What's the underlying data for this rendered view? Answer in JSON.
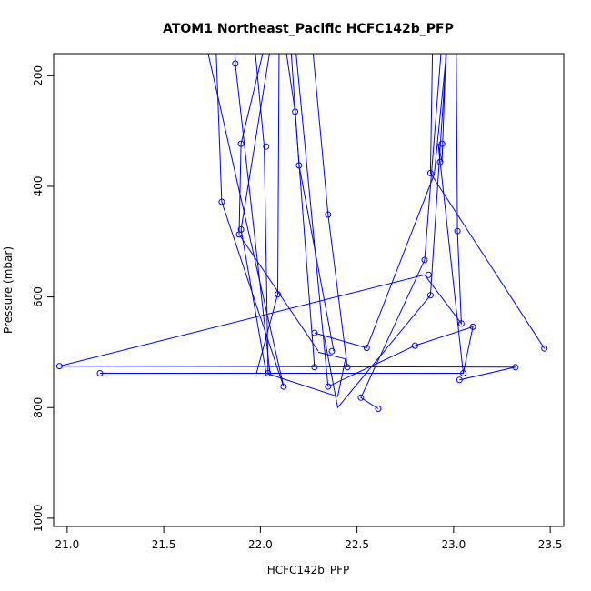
{
  "chart_data": {
    "type": "line",
    "title": "ATOM1 Northeast_Pacific HCFC142b_PFP",
    "xlabel": "HCFC142b_PFP",
    "ylabel": "Pressure (mbar)",
    "xlim": [
      20.93,
      23.57
    ],
    "ylim": [
      1015,
      160
    ],
    "y_inverted": true,
    "xticks": [
      21.0,
      21.5,
      22.0,
      22.5,
      23.0,
      23.5
    ],
    "xtick_labels": [
      "21.0",
      "21.5",
      "22.0",
      "22.5",
      "23.0",
      "23.5"
    ],
    "yticks": [
      200,
      400,
      600,
      800,
      1000
    ],
    "ytick_labels": [
      "200",
      "400",
      "600",
      "800",
      "1000"
    ],
    "grid": false,
    "color": "#0000ff",
    "series": [
      {
        "x": [
          21.6,
          22.12
        ],
        "y": [
          -40,
          762
        ]
      },
      {
        "x": [
          22.13,
          22.35
        ],
        "y": [
          -40,
          762
        ]
      },
      {
        "x": [
          21.75,
          21.8,
          22.12
        ],
        "y": [
          -40,
          428,
          762
        ]
      },
      {
        "x": [
          21.92,
          22.02,
          22.04
        ],
        "y": [
          -40,
          328,
          738
        ]
      },
      {
        "x": [
          22.12,
          22.2,
          22.38
        ],
        "y": [
          -40,
          362,
          698
        ]
      },
      {
        "x": [
          22.05,
          22.18,
          22.28
        ],
        "y": [
          -40,
          265,
          727
        ]
      },
      {
        "x": [
          22.22,
          22.35,
          22.45
        ],
        "y": [
          -40,
          451,
          727
        ]
      },
      {
        "x": [
          21.85,
          21.87,
          22.05
        ],
        "y": [
          -40,
          178,
          738
        ]
      },
      {
        "x": [
          22.15,
          21.9,
          21.89,
          22.3
        ],
        "y": [
          -40,
          323,
          487,
          698
        ]
      },
      {
        "x": [
          22.1,
          22.09,
          21.98,
          22.07
        ],
        "y": [
          -40,
          595,
          738,
          738
        ]
      },
      {
        "x": [
          23.02,
          22.9,
          22.55,
          22.28
        ],
        "y": [
          -40,
          378,
          692,
          665
        ]
      },
      {
        "x": [
          22.98,
          22.85,
          22.52,
          22.61
        ],
        "y": [
          -40,
          533,
          782,
          802
        ]
      },
      {
        "x": [
          23.01,
          23.02,
          23.04,
          22.85,
          20.96,
          23.32,
          23.03
        ],
        "y": [
          -40,
          481,
          648,
          560,
          725,
          727,
          750
        ]
      },
      {
        "x": [
          22.98,
          22.94,
          22.92,
          23.05,
          21.17,
          23.05,
          23.1,
          22.8,
          22.35
        ],
        "y": [
          -40,
          356,
          323,
          738,
          738,
          738,
          654,
          688,
          762
        ]
      },
      {
        "x": [
          22.9,
          22.88,
          23.47
        ],
        "y": [
          -40,
          376,
          693
        ]
      },
      {
        "x": [
          23.0,
          22.88,
          22.4,
          22.33
        ],
        "y": [
          -40,
          597,
          800,
          671
        ]
      },
      {
        "x": [
          22.14,
          21.9,
          22.03,
          22.4,
          22.44,
          22.3
        ],
        "y": [
          -40,
          478,
          738,
          780,
          712,
          700
        ]
      }
    ],
    "points": [
      {
        "x": 21.87,
        "y": 178
      },
      {
        "x": 22.18,
        "y": 265
      },
      {
        "x": 21.9,
        "y": 323
      },
      {
        "x": 22.03,
        "y": 328
      },
      {
        "x": 22.94,
        "y": 323
      },
      {
        "x": 22.93,
        "y": 356
      },
      {
        "x": 22.2,
        "y": 362
      },
      {
        "x": 22.88,
        "y": 376
      },
      {
        "x": 21.8,
        "y": 428
      },
      {
        "x": 22.35,
        "y": 451
      },
      {
        "x": 21.9,
        "y": 478
      },
      {
        "x": 21.89,
        "y": 487
      },
      {
        "x": 23.02,
        "y": 481
      },
      {
        "x": 22.85,
        "y": 533
      },
      {
        "x": 22.87,
        "y": 560
      },
      {
        "x": 22.09,
        "y": 595
      },
      {
        "x": 22.88,
        "y": 597
      },
      {
        "x": 23.04,
        "y": 648
      },
      {
        "x": 23.1,
        "y": 654
      },
      {
        "x": 22.28,
        "y": 665
      },
      {
        "x": 22.8,
        "y": 688
      },
      {
        "x": 22.55,
        "y": 692
      },
      {
        "x": 23.47,
        "y": 693
      },
      {
        "x": 22.37,
        "y": 698
      },
      {
        "x": 20.96,
        "y": 725
      },
      {
        "x": 22.28,
        "y": 727
      },
      {
        "x": 22.45,
        "y": 727
      },
      {
        "x": 23.32,
        "y": 727
      },
      {
        "x": 21.17,
        "y": 738
      },
      {
        "x": 22.04,
        "y": 738
      },
      {
        "x": 23.05,
        "y": 738
      },
      {
        "x": 23.03,
        "y": 750
      },
      {
        "x": 22.12,
        "y": 762
      },
      {
        "x": 22.35,
        "y": 762
      },
      {
        "x": 22.52,
        "y": 782
      },
      {
        "x": 22.61,
        "y": 802
      }
    ]
  }
}
